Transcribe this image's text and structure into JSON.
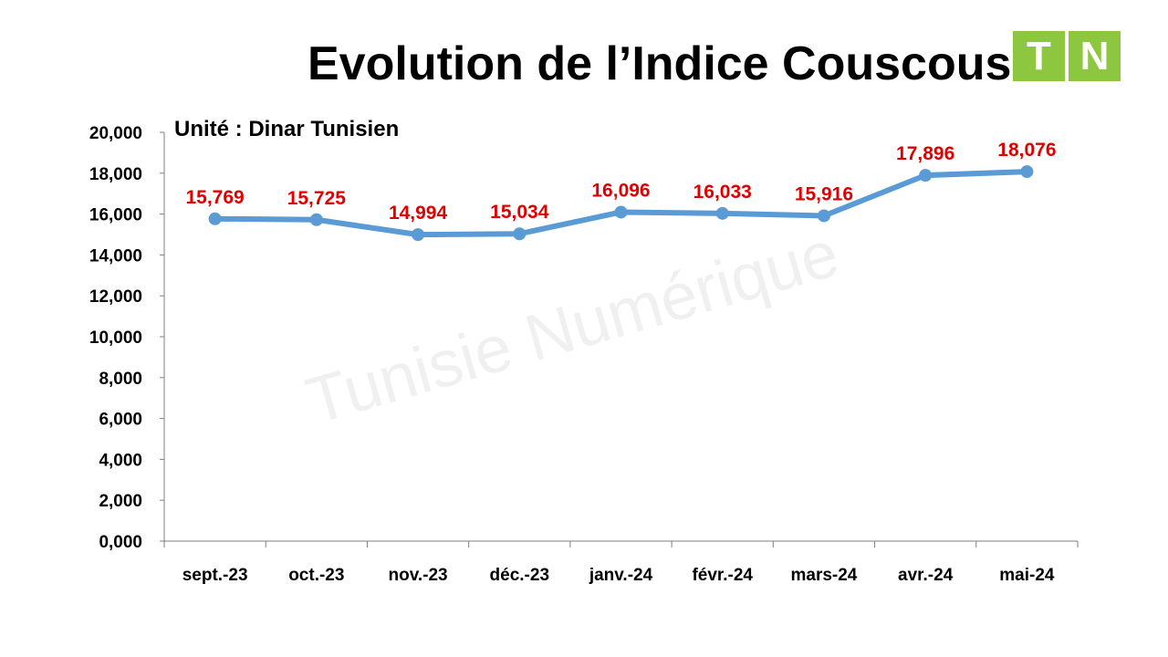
{
  "header": {
    "title": "Evolution de l’Indice Couscous",
    "logo": {
      "letters": [
        "T",
        "N"
      ],
      "color": "#8dc63f"
    }
  },
  "watermark": "Tunisie Numérique",
  "chart_data": {
    "type": "line",
    "title": "Evolution de l’Indice Couscous",
    "subtitle": "Unité : Dinar Tunisien",
    "categories": [
      "sept.-23",
      "oct.-23",
      "nov.-23",
      "déc.-23",
      "janv.-24",
      "févr.-24",
      "mars-24",
      "avr.-24",
      "mai-24"
    ],
    "series": [
      {
        "values": [
          15.769,
          15.725,
          14.994,
          15.034,
          16.096,
          16.033,
          15.916,
          17.896,
          18.076
        ],
        "labels": [
          "15,769",
          "15,725",
          "14,994",
          "15,034",
          "16,096",
          "16,033",
          "15,916",
          "17,896",
          "18,076"
        ],
        "color": "#5b9bd5",
        "label_color": "#e00000"
      }
    ],
    "ylim": [
      0,
      20
    ],
    "yticks": [
      0,
      2,
      4,
      6,
      8,
      10,
      12,
      14,
      16,
      18,
      20
    ],
    "ytick_labels": [
      "0,000",
      "2,000",
      "4,000",
      "6,000",
      "8,000",
      "10,000",
      "12,000",
      "14,000",
      "16,000",
      "18,000",
      "20,000"
    ],
    "grid": false,
    "legend": "none"
  }
}
